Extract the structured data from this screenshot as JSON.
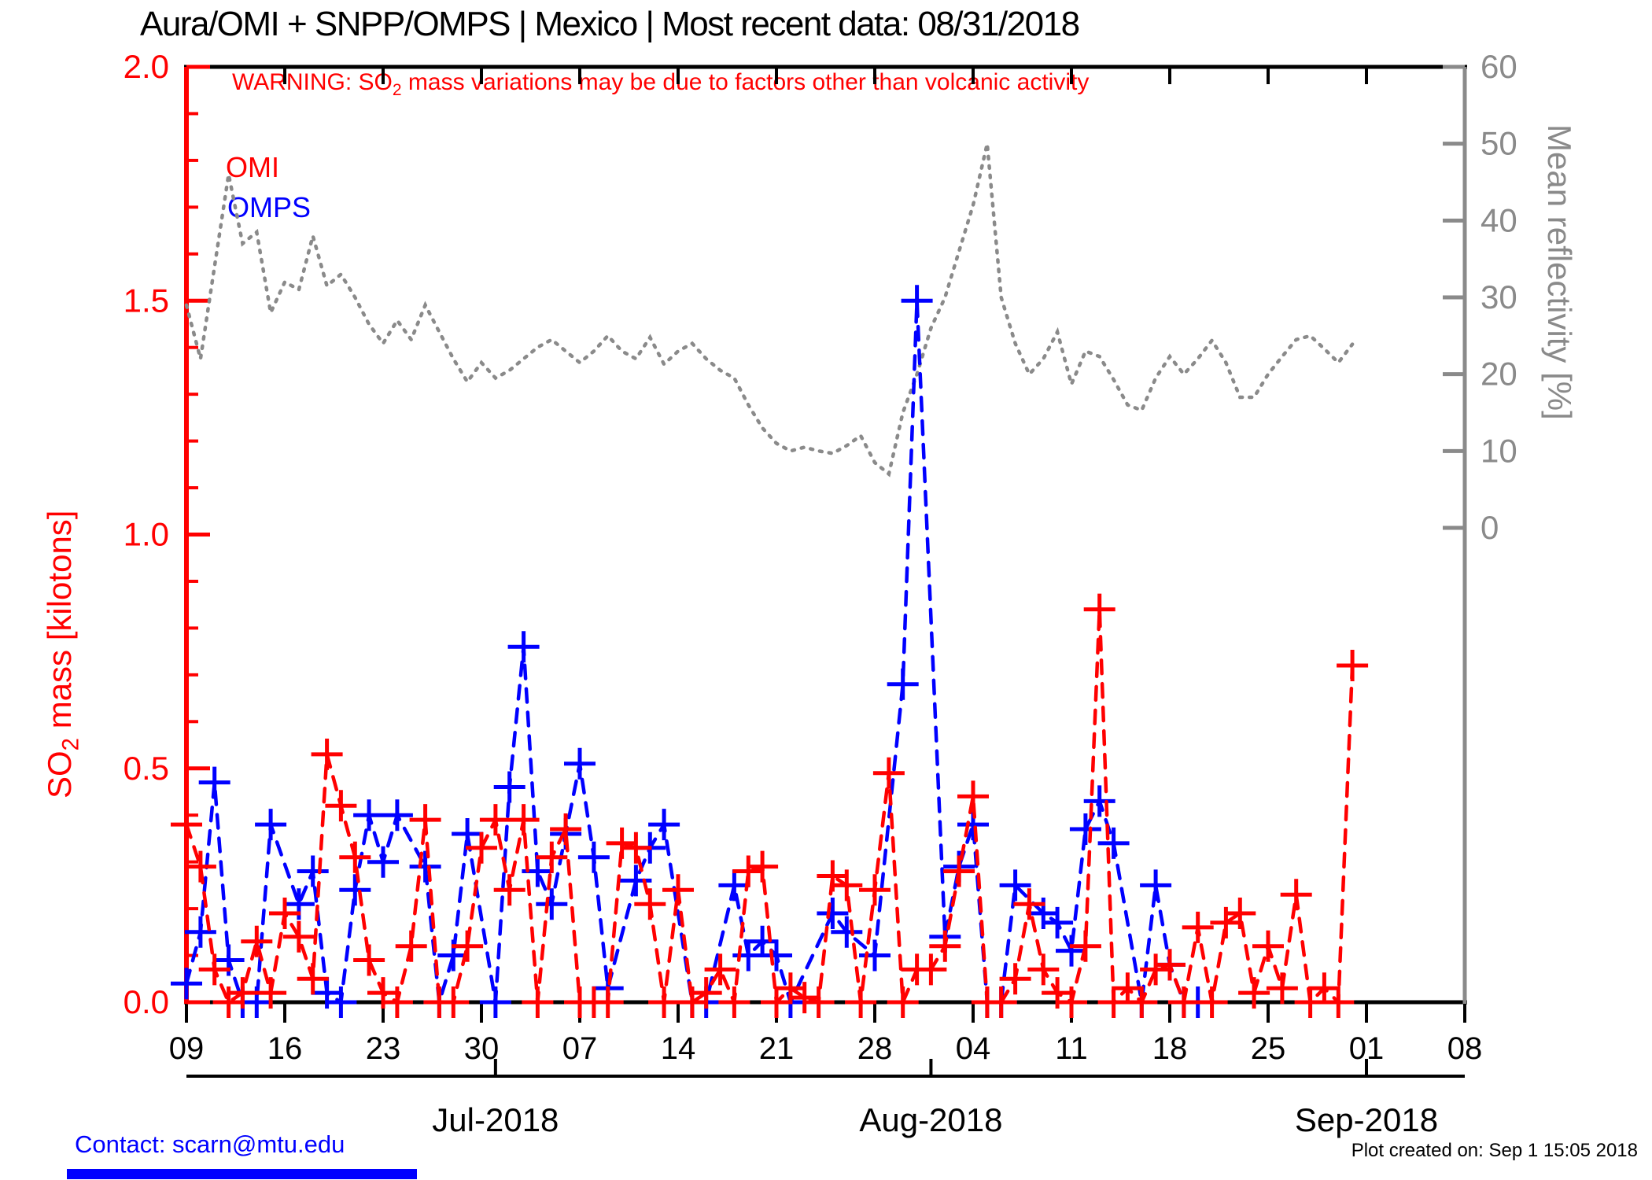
{
  "title": "Aura/OMI + SNPP/OMPS | Mexico | Most recent data: 08/31/2018",
  "warning": {
    "pre": "WARNING: SO",
    "sub": "2",
    "post": " mass variations may be due to factors other than volcanic activity"
  },
  "legend": {
    "omi": "OMI",
    "omps": "OMPS"
  },
  "y_left_label": {
    "pre": "SO",
    "sub": "2",
    "post": " mass [kilotons]"
  },
  "y_right_label": "Mean reflectivity [%]",
  "footer": {
    "contact": "Contact: scarn@mtu.edu",
    "created": "Plot created on: Sep 1 15:05 2018"
  },
  "colors": {
    "omi": "#ff0000",
    "omps": "#0000ff",
    "reflectivity": "#8a8a8a",
    "axis_black": "#000000",
    "title_text": "#000000"
  },
  "chart_data": {
    "type": "line",
    "title": "Aura/OMI + SNPP/OMPS | Mexico | Most recent data: 08/31/2018",
    "xlabel": "",
    "x_start_date": "2018-06-09",
    "x_end_date": "2018-09-08",
    "x_tick_days": [
      0,
      7,
      14,
      21,
      28,
      35,
      42,
      49,
      56,
      63,
      70,
      77,
      84,
      91
    ],
    "x_tick_labels": [
      "09",
      "16",
      "23",
      "30",
      "07",
      "14",
      "21",
      "28",
      "04",
      "11",
      "18",
      "25",
      "01",
      "08"
    ],
    "month_ticks": [
      {
        "label": "Jul-2018",
        "day": 22
      },
      {
        "label": "Aug-2018",
        "day": 53
      },
      {
        "label": "Sep-2018",
        "day": 84
      }
    ],
    "y_left": {
      "label": "SO2 mass [kilotons]",
      "min": 0.0,
      "max": 2.0,
      "ticks": [
        0.0,
        0.5,
        1.0,
        1.5,
        2.0
      ],
      "minor_step": 0.1,
      "color": "#ff0000"
    },
    "y_right": {
      "label": "Mean reflectivity [%]",
      "min": 0,
      "max": 60,
      "ticks": [
        0,
        10,
        20,
        30,
        40,
        50,
        60
      ],
      "color": "#8a8a8a",
      "note": "0% sits well above plot bottom; 60% at plot top"
    },
    "grid": false,
    "legend_position": "top-left inside plot",
    "series": [
      {
        "name": "OMI",
        "axis": "left",
        "color": "#ff0000",
        "style": "dashed-plus",
        "start_day": 0,
        "values": [
          0.38,
          0.29,
          0.07,
          0.0,
          0.02,
          0.13,
          0.02,
          0.19,
          0.14,
          0.05,
          0.53,
          0.42,
          0.31,
          0.09,
          0.02,
          0.0,
          0.12,
          0.39,
          0.0,
          0.0,
          0.12,
          0.33,
          0.39,
          0.24,
          0.39,
          0.0,
          0.31,
          0.37,
          0.0,
          0.0,
          0.0,
          0.34,
          0.33,
          0.21,
          0.0,
          0.24,
          0.0,
          0.02,
          0.07,
          0.0,
          0.28,
          0.29,
          0.0,
          0.03,
          0.01,
          0.0,
          0.27,
          0.25,
          0.0,
          0.24,
          0.49,
          0.0,
          0.07,
          0.07,
          0.12,
          0.28,
          0.44,
          0.0,
          0.0,
          0.05,
          0.21,
          0.07,
          0.02,
          0.0,
          0.12,
          0.84,
          0.0,
          0.03,
          0.0,
          0.07,
          0.08,
          0.0,
          0.16,
          0.0,
          0.17,
          0.19,
          0.02,
          0.12,
          0.03,
          0.23,
          0.0,
          0.03,
          0.0,
          0.72
        ]
      },
      {
        "name": "OMPS",
        "axis": "left",
        "color": "#0000ff",
        "style": "dashed-plus",
        "start_day": 0,
        "values": [
          0.04,
          0.15,
          0.47,
          0.09,
          0.0,
          0.0,
          0.38,
          null,
          0.21,
          0.28,
          0.02,
          0.0,
          0.24,
          0.4,
          0.3,
          0.4,
          null,
          0.29,
          0.0,
          0.1,
          0.36,
          null,
          0.0,
          0.46,
          0.76,
          0.28,
          0.21,
          0.36,
          0.51,
          0.31,
          0.03,
          null,
          0.26,
          0.33,
          0.38,
          null,
          0.0,
          0.0,
          null,
          0.25,
          0.1,
          0.13,
          0.1,
          0.0,
          null,
          null,
          0.19,
          0.15,
          null,
          0.1,
          null,
          0.68,
          1.5,
          null,
          0.14,
          0.29,
          0.38,
          0.0,
          0.0,
          0.25,
          null,
          0.19,
          0.17,
          0.11,
          0.37,
          0.43,
          0.34,
          null,
          0.0,
          0.25,
          0.08,
          0.0,
          0.0,
          null,
          null,
          null,
          null,
          null,
          null,
          null,
          null,
          null,
          null,
          null
        ]
      },
      {
        "name": "Mean reflectivity",
        "axis": "right",
        "color": "#8a8a8a",
        "style": "dotted",
        "start_day": 0,
        "values": [
          29,
          22,
          34,
          46,
          37,
          38.5,
          28,
          32,
          31,
          38,
          31.5,
          33,
          30,
          26.5,
          24,
          27,
          24.5,
          29,
          25.5,
          22,
          19,
          21.5,
          19.5,
          20.5,
          22,
          23.5,
          24.5,
          23,
          21.5,
          23,
          25,
          23,
          22,
          24.8,
          21.3,
          23,
          24,
          22,
          20.5,
          19.5,
          16,
          13,
          11,
          10,
          10.5,
          10,
          9.7,
          10.7,
          12,
          8.5,
          7,
          15,
          20,
          26,
          30,
          36,
          42,
          50,
          30,
          24,
          20,
          22,
          25.5,
          18.7,
          23,
          22.3,
          19.3,
          16,
          15.3,
          19.5,
          22.3,
          20,
          22,
          24.4,
          21.5,
          17,
          17,
          20,
          22.3,
          24.5,
          25,
          23.3,
          21.5,
          23.9
        ]
      }
    ]
  }
}
